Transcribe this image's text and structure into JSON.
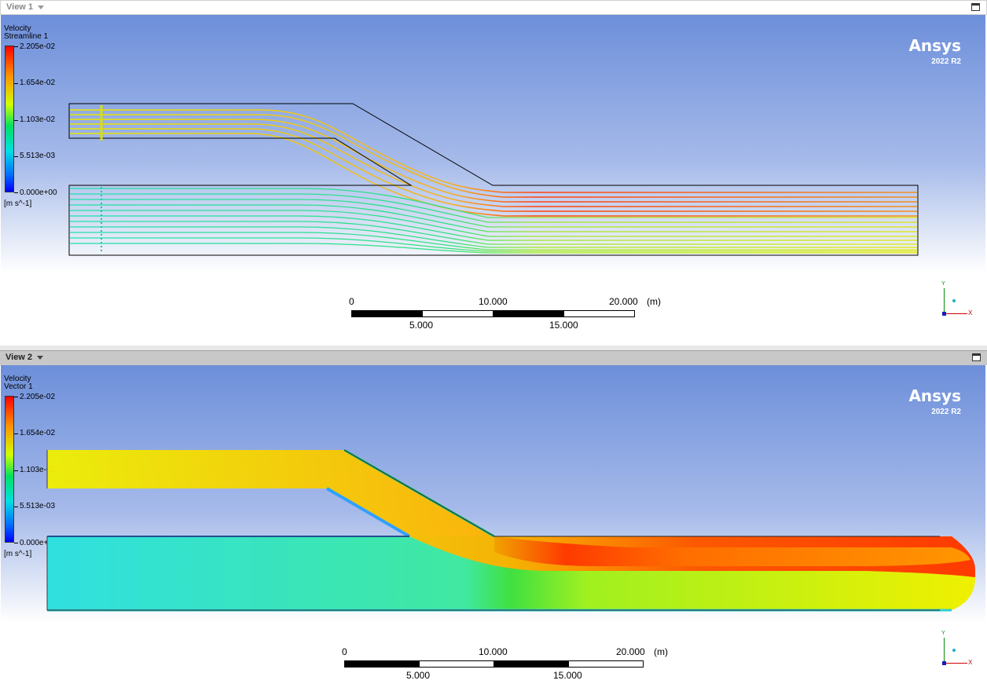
{
  "views": [
    {
      "id": "view1",
      "title": "View 1",
      "legend": {
        "variable": "Velocity",
        "object": "Streamline 1",
        "max": "2.205e-02",
        "v3": "1.654e-02",
        "v2": "1.103e-02",
        "v1": "5.513e-03",
        "min": "0.000e+00",
        "unit": "[m s^-1]"
      },
      "brand": {
        "name": "Ansys",
        "version": "2022 R2"
      },
      "scale": {
        "t0": "0",
        "t10": "10.000",
        "t20": "20.000",
        "unit": "(m)",
        "t5": "5.000",
        "t15": "15.000"
      },
      "triad": {
        "y": "Y",
        "x": "X"
      }
    },
    {
      "id": "view2",
      "title": "View 2",
      "legend": {
        "variable": "Velocity",
        "object": "Vector 1",
        "max": "2.205e-02",
        "v3": "1.654e-02",
        "v2": "1.103e-02",
        "v1": "5.513e-03",
        "min": "0.000e+00",
        "unit": "[m s^-1]"
      },
      "brand": {
        "name": "Ansys",
        "version": "2022 R2"
      },
      "scale": {
        "t0": "0",
        "t10": "10.000",
        "t20": "20.000",
        "unit": "(m)",
        "t5": "5.000",
        "t15": "15.000"
      },
      "triad": {
        "y": "Y",
        "x": "X"
      }
    }
  ],
  "colors": {
    "background_top": "#6d8fda",
    "background_bottom": "#ffffff",
    "colormap": [
      "#0000ff",
      "#00e0e0",
      "#00e060",
      "#d0ff00",
      "#ff9000",
      "#ff0000"
    ]
  }
}
